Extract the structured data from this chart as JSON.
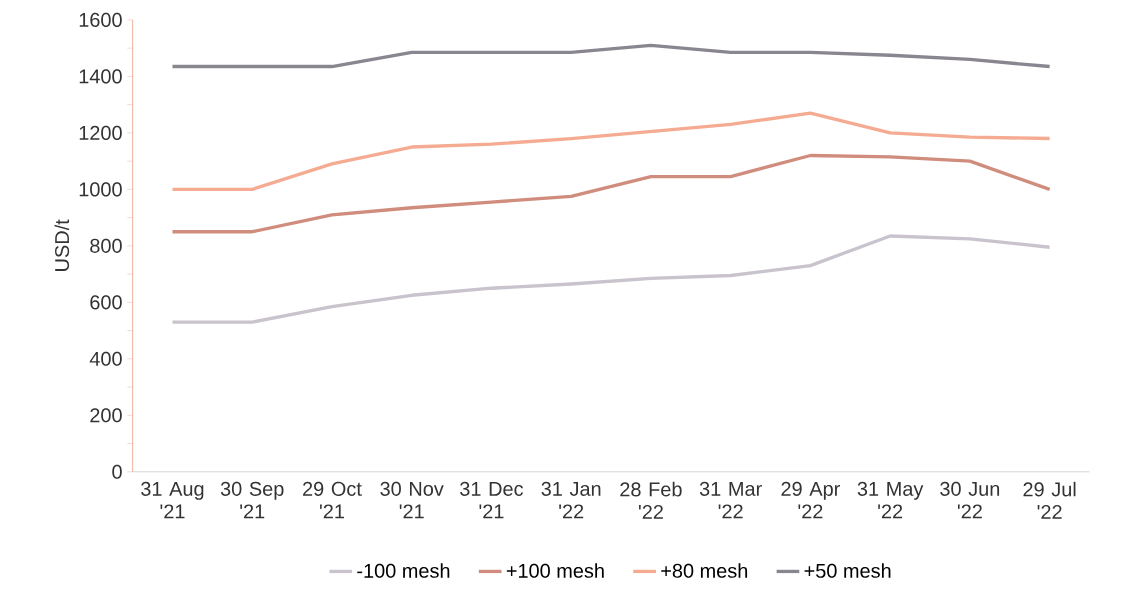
{
  "chart_data": {
    "type": "line",
    "ylabel": "USD/t",
    "categories": [
      "31 Aug '21",
      "30 Sep '21",
      "29 Oct '21",
      "30 Nov '21",
      "31 Dec '21",
      "31 Jan '22",
      "28 Feb '22",
      "31 Mar '22",
      "29 Apr '22",
      "31 May '22",
      "30 Jun '22",
      "29 Jul '22"
    ],
    "series": [
      {
        "name": "-100 mesh",
        "color": "#c8c3cc",
        "values": [
          530,
          530,
          585,
          625,
          650,
          665,
          685,
          695,
          730,
          835,
          825,
          795
        ]
      },
      {
        "name": "+100 mesh",
        "color": "#d08c7c",
        "values": [
          850,
          850,
          910,
          935,
          955,
          975,
          1045,
          1045,
          1120,
          1115,
          1100,
          1000
        ]
      },
      {
        "name": "+80 mesh",
        "color": "#f5ab91",
        "values": [
          1000,
          1000,
          1090,
          1150,
          1160,
          1180,
          1205,
          1230,
          1270,
          1200,
          1185,
          1180
        ]
      },
      {
        "name": "+50 mesh",
        "color": "#8a8690",
        "values": [
          1435,
          1435,
          1435,
          1485,
          1485,
          1485,
          1510,
          1485,
          1485,
          1475,
          1460,
          1435
        ]
      }
    ],
    "ylim": [
      0,
      1600
    ],
    "yticks": [
      0,
      200,
      400,
      600,
      800,
      1000,
      1200,
      1400,
      1600
    ],
    "grid": false,
    "legend": "bottom",
    "marker": "none",
    "line_style": "solid"
  }
}
